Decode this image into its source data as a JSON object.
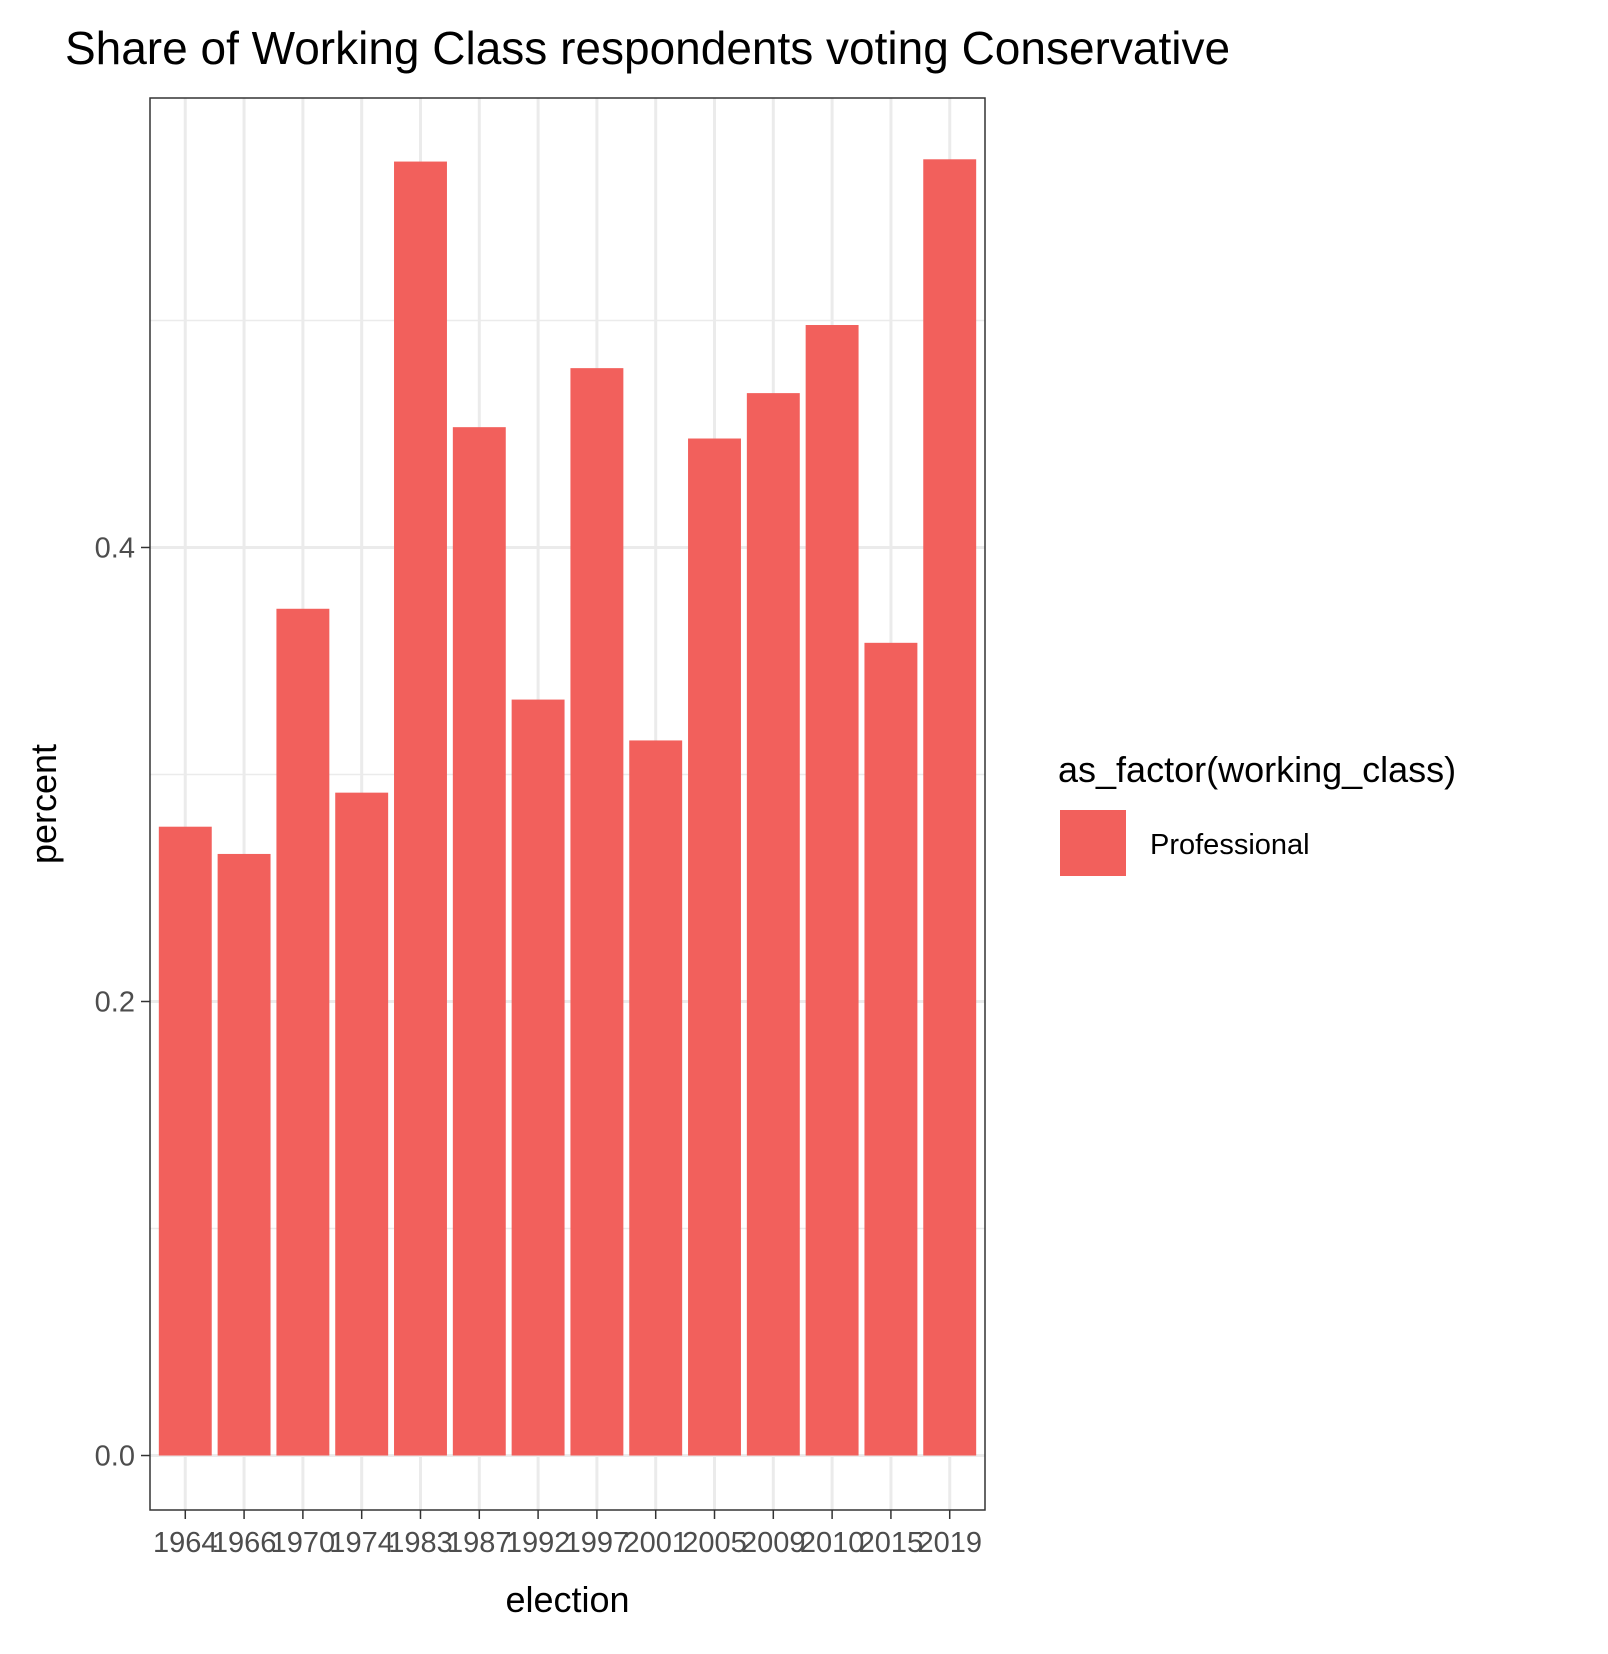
{
  "chart_data": {
    "type": "bar",
    "title": "Share of Working Class respondents voting Conservative",
    "xlabel": "election",
    "ylabel": "percent",
    "categories": [
      "1964",
      "1966",
      "1970",
      "1974",
      "1983",
      "1987",
      "1992",
      "1997",
      "2001",
      "2005",
      "2009",
      "2010",
      "2015",
      "2019"
    ],
    "series": [
      {
        "name": "Professional",
        "color": "#f2605c",
        "values": [
          0.277,
          0.265,
          0.373,
          0.292,
          0.57,
          0.453,
          0.333,
          0.479,
          0.315,
          0.448,
          0.468,
          0.498,
          0.358,
          0.571
        ]
      }
    ],
    "ylim": [
      -0.024,
      0.598
    ],
    "yticks": [
      0.0,
      0.2,
      0.4
    ],
    "ytick_labels": [
      "0.0",
      "0.2",
      "0.4"
    ],
    "grid": true,
    "legend_position": "right",
    "legend_title": "as_factor(working_class)"
  }
}
